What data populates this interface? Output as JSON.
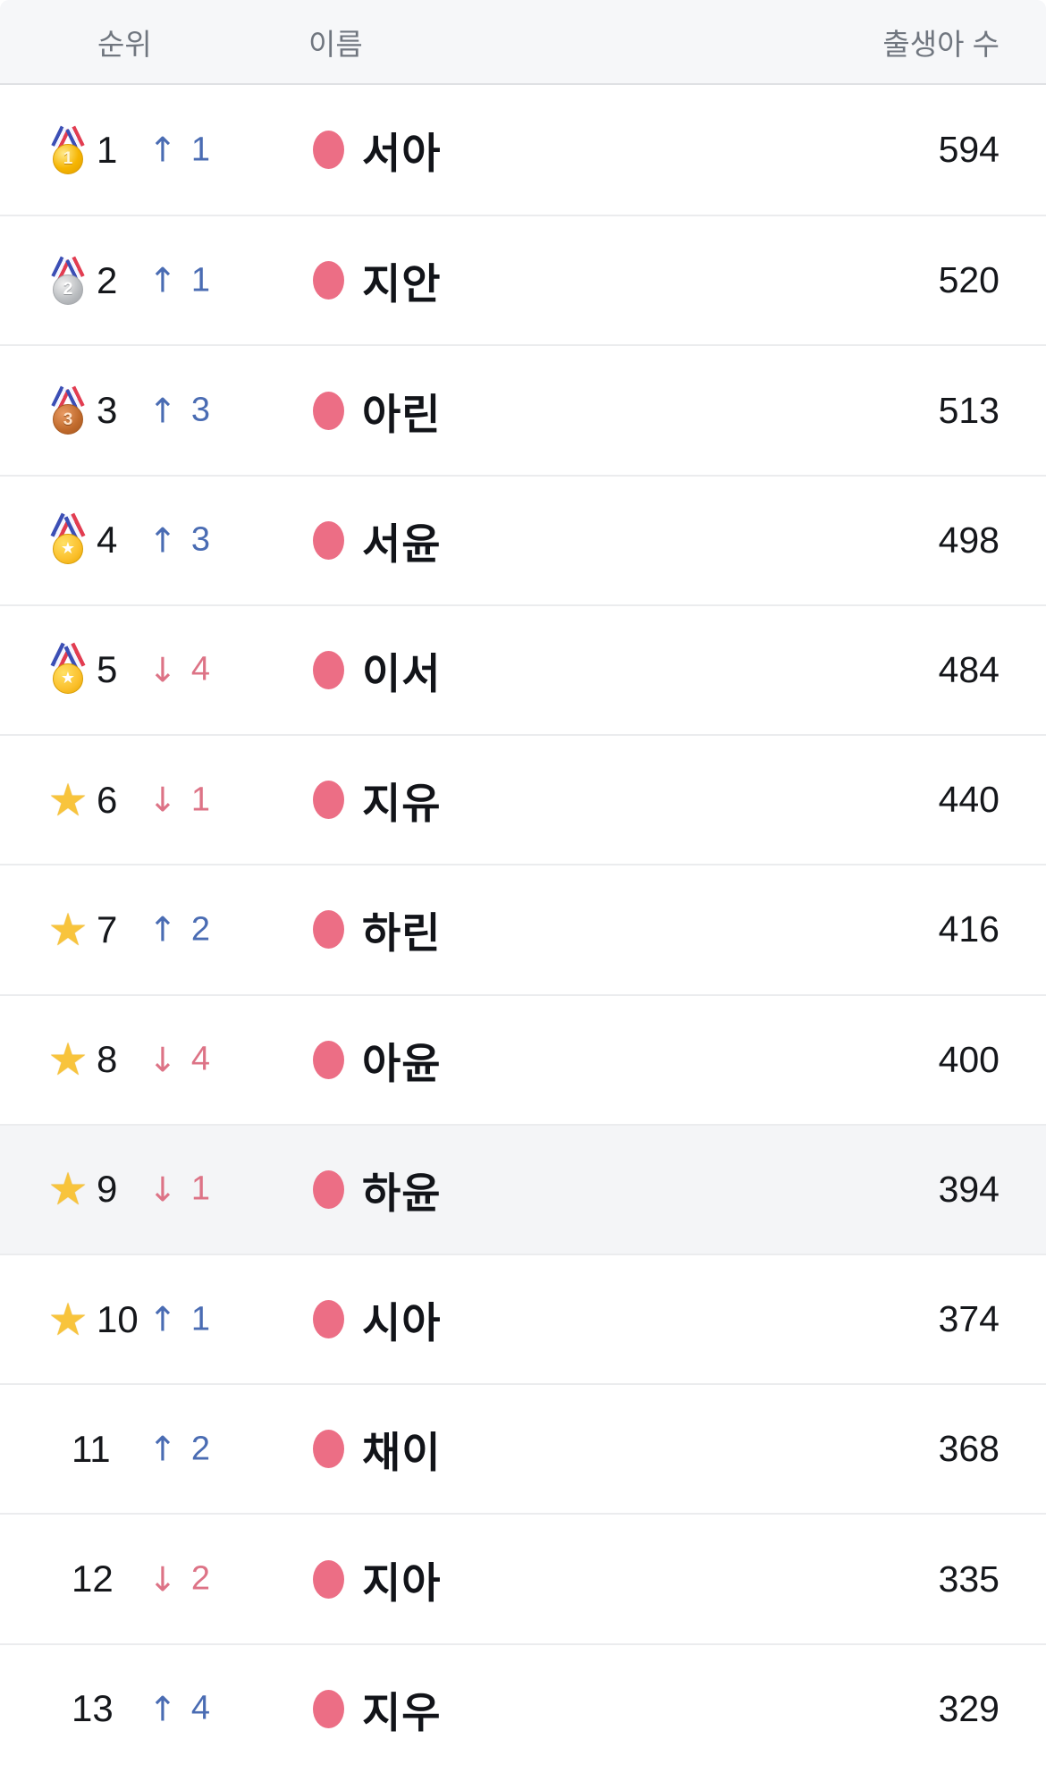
{
  "header": {
    "rank": "순위",
    "name": "이름",
    "births": "출생아 수"
  },
  "glyphs": {
    "up_arrow": "↑",
    "down_arrow": "↓",
    "star": "★"
  },
  "colors": {
    "up_change": "#4a6cb3",
    "down_change": "#dd7386",
    "series_dot": "#ec6e85",
    "header_bg": "#f6f7f9",
    "row_bg": "#ffffff",
    "highlight_row_bg": "#f4f5f7",
    "divider": "#ebecee",
    "header_text": "#70767f",
    "name_text": "#121419",
    "gold": "#f6b502",
    "silver": "#b9bcbf",
    "bronze": "#c06a2c",
    "star": "#f8c43c"
  },
  "rows": [
    {
      "rank": "1",
      "icon": "gold-medal",
      "coin_text": "1",
      "change_dir": "up",
      "change": "1",
      "name": "서아",
      "births": "594",
      "highlighted": false
    },
    {
      "rank": "2",
      "icon": "silver-medal",
      "coin_text": "2",
      "change_dir": "up",
      "change": "1",
      "name": "지안",
      "births": "520",
      "highlighted": false
    },
    {
      "rank": "3",
      "icon": "bronze-medal",
      "coin_text": "3",
      "change_dir": "up",
      "change": "3",
      "name": "아린",
      "births": "513",
      "highlighted": false
    },
    {
      "rank": "4",
      "icon": "sports-medal",
      "coin_text": "★",
      "change_dir": "up",
      "change": "3",
      "name": "서윤",
      "births": "498",
      "highlighted": false
    },
    {
      "rank": "5",
      "icon": "sports-medal",
      "coin_text": "★",
      "change_dir": "down",
      "change": "4",
      "name": "이서",
      "births": "484",
      "highlighted": false
    },
    {
      "rank": "6",
      "icon": "star",
      "coin_text": "",
      "change_dir": "down",
      "change": "1",
      "name": "지유",
      "births": "440",
      "highlighted": false
    },
    {
      "rank": "7",
      "icon": "star",
      "coin_text": "",
      "change_dir": "up",
      "change": "2",
      "name": "하린",
      "births": "416",
      "highlighted": false
    },
    {
      "rank": "8",
      "icon": "star",
      "coin_text": "",
      "change_dir": "down",
      "change": "4",
      "name": "아윤",
      "births": "400",
      "highlighted": false
    },
    {
      "rank": "9",
      "icon": "star",
      "coin_text": "",
      "change_dir": "down",
      "change": "1",
      "name": "하윤",
      "births": "394",
      "highlighted": true
    },
    {
      "rank": "10",
      "icon": "star",
      "coin_text": "",
      "change_dir": "up",
      "change": "1",
      "name": "시아",
      "births": "374",
      "highlighted": false
    },
    {
      "rank": "11",
      "icon": "none",
      "coin_text": "",
      "change_dir": "up",
      "change": "2",
      "name": "채이",
      "births": "368",
      "highlighted": false
    },
    {
      "rank": "12",
      "icon": "none",
      "coin_text": "",
      "change_dir": "down",
      "change": "2",
      "name": "지아",
      "births": "335",
      "highlighted": false
    },
    {
      "rank": "13",
      "icon": "none",
      "coin_text": "",
      "change_dir": "up",
      "change": "4",
      "name": "지우",
      "births": "329",
      "highlighted": false
    }
  ]
}
